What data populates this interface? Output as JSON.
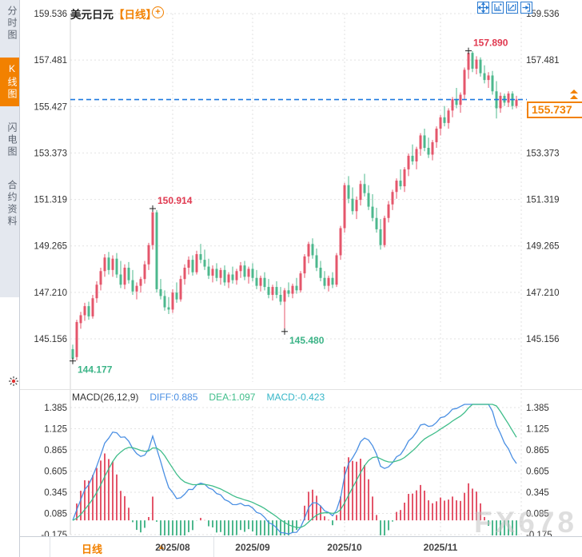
{
  "app": {
    "watermark": "FX678"
  },
  "colors": {
    "accent_orange": "#f28100",
    "up_red": "#e4566b",
    "down_green": "#4db88e",
    "diff_blue": "#4a8fe3",
    "dea_green": "#3fbd8a",
    "macd_teal": "#36b6c8",
    "price_line_blue": "#1e7ae0",
    "annotation_red": "#e0384f",
    "annotation_green": "#3cb487"
  },
  "sidebar": {
    "items": [
      {
        "label": "分时图",
        "key": "timeshare",
        "active": false
      },
      {
        "label": "K线图",
        "key": "kline",
        "active": true
      },
      {
        "label": "闪电图",
        "key": "lightning",
        "active": false
      },
      {
        "label": "合约资料",
        "key": "contract-info",
        "active": false
      }
    ]
  },
  "header": {
    "symbol": "美元日元",
    "period": "【日线】",
    "add_symbol": "⊕",
    "toolbar_icons": [
      "move-icon",
      "fit-chart-icon",
      "scale-chart-icon",
      "exit-panel-icon"
    ]
  },
  "current_price": {
    "value": "155.737"
  },
  "macd_header": {
    "title": "MACD(26,12,9)",
    "diff_label": "DIFF:0.885",
    "dea_label": "DEA:1.097",
    "macd_label": "MACD:-0.423"
  },
  "bottom_bar": {
    "period": "日线",
    "arrow": "▲"
  },
  "chart_data": {
    "type": "candlestick+macd",
    "symbol": "美元日元",
    "period": "日线",
    "y_ticks": [
      159.536,
      157.481,
      155.427,
      153.373,
      151.319,
      149.265,
      147.21,
      145.156
    ],
    "macd_ticks": [
      1.385,
      1.125,
      0.865,
      0.605,
      0.345,
      0.085,
      -0.175
    ],
    "months": [
      {
        "label": "2025/08",
        "index": 25
      },
      {
        "label": "2025/09",
        "index": 45
      },
      {
        "label": "2025/10",
        "index": 68
      },
      {
        "label": "2025/11",
        "index": 92
      }
    ],
    "current_price": 155.737,
    "macd_current": {
      "diff": 0.885,
      "dea": 1.097,
      "macd": -0.423
    },
    "annotations": [
      {
        "name": "period-high",
        "index": 99,
        "price": 157.89,
        "tone": "up",
        "placement": "above"
      },
      {
        "name": "spike-high",
        "index": 20,
        "price": 150.914,
        "tone": "up",
        "placement": "above"
      },
      {
        "name": "mid-low",
        "index": 53,
        "price": 145.48,
        "tone": "down",
        "placement": "below"
      },
      {
        "name": "period-low",
        "index": 0,
        "price": 144.177,
        "tone": "down",
        "placement": "below"
      }
    ],
    "up_color": "#e4566b",
    "down_color": "#4db88e",
    "candles": [
      [
        144.7,
        144.9,
        144.177,
        144.28
      ],
      [
        144.35,
        146.0,
        144.2,
        145.9
      ],
      [
        145.85,
        146.35,
        145.6,
        146.2
      ],
      [
        146.2,
        146.75,
        145.95,
        146.6
      ],
      [
        146.6,
        146.8,
        146.0,
        146.15
      ],
      [
        146.15,
        147.1,
        146.05,
        146.95
      ],
      [
        146.95,
        147.7,
        146.75,
        147.55
      ],
      [
        147.55,
        148.3,
        147.3,
        148.15
      ],
      [
        148.15,
        148.9,
        147.9,
        148.75
      ],
      [
        148.75,
        149.0,
        148.0,
        148.2
      ],
      [
        148.2,
        148.85,
        147.9,
        148.7
      ],
      [
        148.7,
        148.95,
        147.85,
        148.0
      ],
      [
        148.0,
        148.6,
        147.4,
        147.55
      ],
      [
        147.55,
        148.45,
        147.35,
        148.3
      ],
      [
        148.3,
        148.55,
        147.6,
        147.75
      ],
      [
        147.75,
        148.2,
        147.1,
        147.25
      ],
      [
        147.25,
        147.65,
        146.9,
        147.5
      ],
      [
        147.5,
        147.9,
        147.2,
        147.8
      ],
      [
        147.8,
        148.6,
        147.6,
        148.45
      ],
      [
        148.45,
        149.4,
        148.2,
        149.3
      ],
      [
        149.3,
        150.914,
        149.1,
        150.75
      ],
      [
        150.75,
        150.85,
        147.2,
        147.35
      ],
      [
        147.35,
        147.8,
        146.9,
        147.05
      ],
      [
        147.05,
        147.3,
        146.4,
        146.55
      ],
      [
        146.55,
        147.0,
        146.25,
        146.45
      ],
      [
        146.45,
        147.35,
        146.3,
        147.2
      ],
      [
        147.2,
        147.65,
        146.75,
        146.9
      ],
      [
        146.9,
        147.95,
        146.8,
        147.8
      ],
      [
        147.8,
        148.45,
        147.55,
        148.3
      ],
      [
        148.3,
        148.8,
        148.0,
        148.65
      ],
      [
        148.65,
        148.85,
        147.95,
        148.1
      ],
      [
        148.1,
        149.05,
        148.0,
        148.9
      ],
      [
        148.9,
        149.35,
        148.5,
        148.65
      ],
      [
        148.65,
        149.1,
        148.2,
        148.35
      ],
      [
        148.35,
        148.7,
        147.8,
        147.95
      ],
      [
        147.95,
        148.4,
        147.65,
        148.25
      ],
      [
        148.25,
        148.5,
        147.7,
        147.85
      ],
      [
        147.85,
        148.3,
        147.55,
        148.2
      ],
      [
        148.2,
        148.4,
        147.5,
        147.65
      ],
      [
        147.65,
        148.1,
        147.4,
        148.0
      ],
      [
        148.0,
        148.35,
        147.6,
        147.75
      ],
      [
        147.75,
        148.25,
        147.55,
        148.15
      ],
      [
        148.15,
        148.55,
        147.85,
        148.4
      ],
      [
        148.4,
        148.6,
        147.75,
        147.9
      ],
      [
        147.9,
        148.35,
        147.6,
        148.25
      ],
      [
        148.25,
        148.5,
        147.7,
        147.85
      ],
      [
        147.85,
        148.2,
        147.35,
        147.5
      ],
      [
        147.5,
        147.95,
        147.25,
        147.85
      ],
      [
        147.85,
        148.1,
        147.3,
        147.45
      ],
      [
        147.45,
        147.8,
        146.95,
        147.1
      ],
      [
        147.1,
        147.55,
        146.85,
        147.45
      ],
      [
        147.45,
        147.7,
        146.95,
        147.1
      ],
      [
        147.1,
        147.45,
        146.65,
        146.8
      ],
      [
        146.8,
        147.4,
        145.48,
        147.3
      ],
      [
        147.3,
        147.65,
        147.0,
        147.15
      ],
      [
        147.15,
        147.6,
        146.95,
        147.5
      ],
      [
        147.5,
        147.85,
        147.15,
        147.3
      ],
      [
        147.3,
        148.15,
        147.2,
        148.05
      ],
      [
        148.05,
        148.9,
        147.85,
        148.8
      ],
      [
        148.8,
        149.45,
        148.5,
        149.35
      ],
      [
        149.35,
        149.6,
        148.7,
        148.85
      ],
      [
        148.85,
        149.15,
        148.15,
        148.3
      ],
      [
        148.3,
        148.6,
        147.7,
        147.85
      ],
      [
        147.85,
        148.15,
        147.35,
        147.5
      ],
      [
        147.5,
        147.95,
        147.25,
        147.85
      ],
      [
        147.85,
        148.1,
        147.4,
        147.55
      ],
      [
        147.55,
        148.95,
        147.45,
        148.85
      ],
      [
        148.85,
        150.15,
        148.65,
        150.05
      ],
      [
        150.05,
        152.05,
        149.85,
        151.95
      ],
      [
        151.95,
        152.35,
        151.15,
        151.35
      ],
      [
        151.35,
        151.85,
        150.65,
        150.8
      ],
      [
        150.8,
        151.45,
        150.45,
        151.3
      ],
      [
        151.3,
        152.15,
        151.05,
        152.0
      ],
      [
        152.0,
        152.45,
        151.45,
        151.6
      ],
      [
        151.6,
        151.95,
        150.85,
        151.0
      ],
      [
        151.0,
        151.55,
        150.35,
        150.5
      ],
      [
        150.5,
        150.95,
        149.85,
        150.0
      ],
      [
        150.0,
        150.45,
        149.1,
        149.3
      ],
      [
        149.3,
        150.6,
        149.2,
        150.5
      ],
      [
        150.5,
        151.25,
        150.3,
        151.1
      ],
      [
        151.1,
        151.75,
        150.85,
        151.65
      ],
      [
        151.65,
        152.25,
        151.35,
        152.15
      ],
      [
        152.15,
        152.65,
        151.75,
        151.9
      ],
      [
        151.9,
        152.75,
        151.65,
        152.65
      ],
      [
        152.65,
        153.35,
        152.35,
        153.25
      ],
      [
        153.25,
        153.75,
        152.85,
        153.0
      ],
      [
        153.0,
        153.65,
        152.65,
        153.55
      ],
      [
        153.55,
        154.25,
        153.25,
        154.15
      ],
      [
        154.15,
        154.45,
        153.45,
        153.6
      ],
      [
        153.6,
        154.05,
        153.15,
        153.3
      ],
      [
        153.3,
        153.95,
        153.05,
        153.85
      ],
      [
        153.85,
        154.55,
        153.6,
        154.45
      ],
      [
        154.45,
        155.05,
        154.15,
        154.95
      ],
      [
        154.95,
        155.45,
        154.55,
        154.7
      ],
      [
        154.7,
        155.35,
        154.45,
        155.25
      ],
      [
        155.25,
        155.85,
        154.95,
        155.75
      ],
      [
        155.75,
        156.25,
        155.35,
        155.5
      ],
      [
        155.5,
        156.05,
        155.15,
        155.95
      ],
      [
        155.95,
        157.15,
        155.75,
        157.05
      ],
      [
        157.05,
        157.89,
        156.65,
        157.8
      ],
      [
        157.8,
        157.88,
        156.95,
        157.1
      ],
      [
        157.1,
        157.65,
        156.85,
        157.5
      ],
      [
        157.5,
        157.6,
        156.75,
        156.9
      ],
      [
        156.9,
        157.25,
        156.45,
        156.6
      ],
      [
        156.6,
        156.95,
        156.25,
        156.8
      ],
      [
        156.8,
        157.0,
        155.95,
        156.1
      ],
      [
        156.1,
        156.55,
        154.9,
        155.35
      ],
      [
        155.35,
        156.05,
        155.15,
        155.9
      ],
      [
        155.9,
        156.0,
        155.45,
        155.6
      ],
      [
        155.6,
        156.1,
        155.4,
        156.0
      ],
      [
        156.0,
        156.1,
        155.3,
        155.45
      ],
      [
        155.45,
        155.9,
        155.35,
        155.737
      ]
    ]
  }
}
